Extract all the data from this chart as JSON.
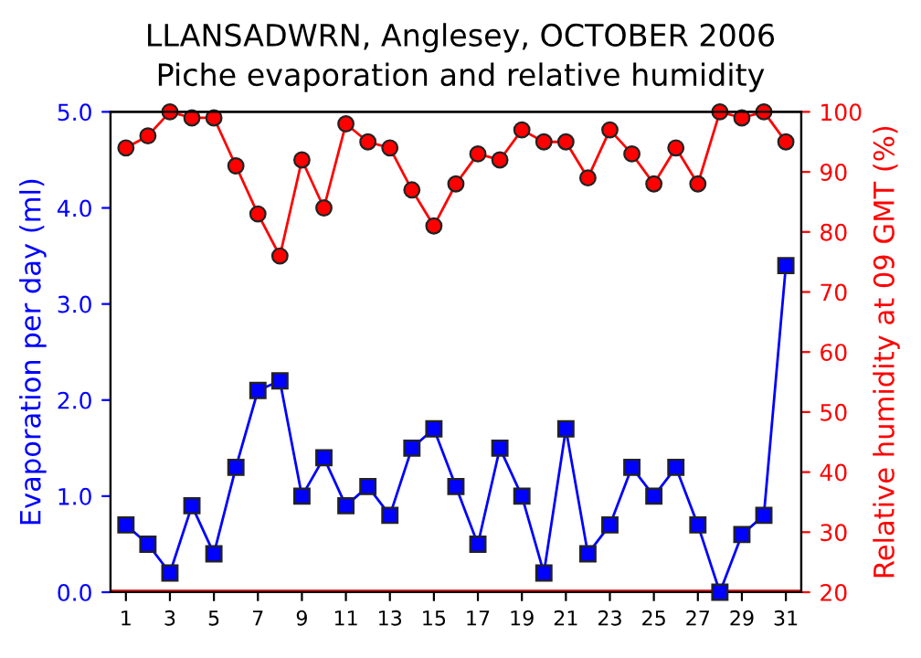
{
  "chart_data": {
    "type": "line",
    "title": "LLANSADWRN, Anglesey, OCTOBER 2006",
    "subtitle": "Piche evaporation and relative humidity",
    "ylabel": "Evaporation per day (ml)",
    "y2label": "Relative humidity at 09 GMT (%)",
    "x": [
      1,
      2,
      3,
      4,
      5,
      6,
      7,
      8,
      9,
      10,
      11,
      12,
      13,
      14,
      15,
      16,
      17,
      18,
      19,
      20,
      21,
      22,
      23,
      24,
      25,
      26,
      27,
      28,
      29,
      30,
      31
    ],
    "series": [
      {
        "color": "#0000ff",
        "marker": "square",
        "values": [
          0.7,
          0.5,
          0.2,
          0.9,
          0.4,
          1.3,
          2.1,
          2.2,
          1.0,
          1.4,
          0.9,
          1.1,
          0.8,
          1.5,
          1.7,
          1.1,
          0.5,
          1.5,
          1.0,
          0.2,
          1.7,
          0.4,
          0.7,
          1.3,
          1.0,
          1.3,
          0.7,
          0.0,
          0.6,
          0.8,
          3.4
        ]
      },
      {
        "color": "#ff0000",
        "marker": "circle",
        "axis": "y2",
        "values": [
          94,
          96,
          100,
          99,
          99,
          91,
          83,
          76,
          92,
          84,
          98,
          95,
          94,
          87,
          81,
          88,
          93,
          92,
          97,
          95,
          95,
          89,
          97,
          93,
          88,
          94,
          88,
          100,
          99,
          100,
          95
        ]
      }
    ],
    "xlim": [
      0.3,
      31.7
    ],
    "xticks": [
      1,
      3,
      5,
      7,
      9,
      11,
      13,
      15,
      17,
      19,
      21,
      23,
      25,
      27,
      29,
      31
    ],
    "ylim": [
      0,
      5
    ],
    "yticks": [
      {
        "value": 0,
        "label": "0.0"
      },
      {
        "value": 1,
        "label": "1.0"
      },
      {
        "value": 2,
        "label": "2.0"
      },
      {
        "value": 3,
        "label": "3.0"
      },
      {
        "value": 4,
        "label": "4.0"
      },
      {
        "value": 5,
        "label": "5.0"
      }
    ],
    "y2lim": [
      20,
      100
    ],
    "y2ticks": [
      20,
      30,
      40,
      50,
      60,
      70,
      80,
      90,
      100
    ],
    "ref_lines": [
      {
        "axis": "y",
        "value": 0,
        "color": "#cc0000"
      }
    ],
    "grid": false,
    "legend": false
  }
}
